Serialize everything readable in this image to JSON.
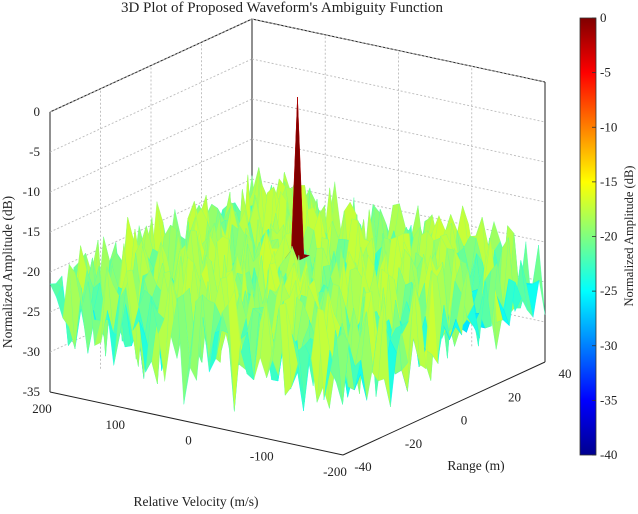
{
  "chart_data": {
    "type": "surface3d",
    "title": "3D Plot of Proposed Waveform's Ambiguity Function",
    "xlabel": "Relative Velocity (m/s)",
    "ylabel": "Range (m)",
    "zlabel": "Normalized Amplitude (dB)",
    "colorbar_label": "Normalized Amplitude (dB)",
    "xlim": [
      -200,
      200
    ],
    "ylim": [
      -40,
      40
    ],
    "zlim": [
      -35,
      0
    ],
    "x_ticks": [
      "200",
      "100",
      "0",
      "-100",
      "-200"
    ],
    "y_ticks": [
      "-40",
      "-20",
      "0",
      "20",
      "40"
    ],
    "z_ticks": [
      "0",
      "-5",
      "-10",
      "-15",
      "-20",
      "-25",
      "-30",
      "-35"
    ],
    "colorbar_ticks": [
      "0",
      "-5",
      "-10",
      "-15",
      "-20",
      "-25",
      "-30",
      "-35",
      "-40"
    ],
    "colorbar_range": [
      -40,
      0
    ],
    "colormap": "jet",
    "peak": {
      "x": 0,
      "y": 0,
      "z": 0
    },
    "sidelobe_range_db": [
      -35,
      -15
    ],
    "grid": true
  }
}
